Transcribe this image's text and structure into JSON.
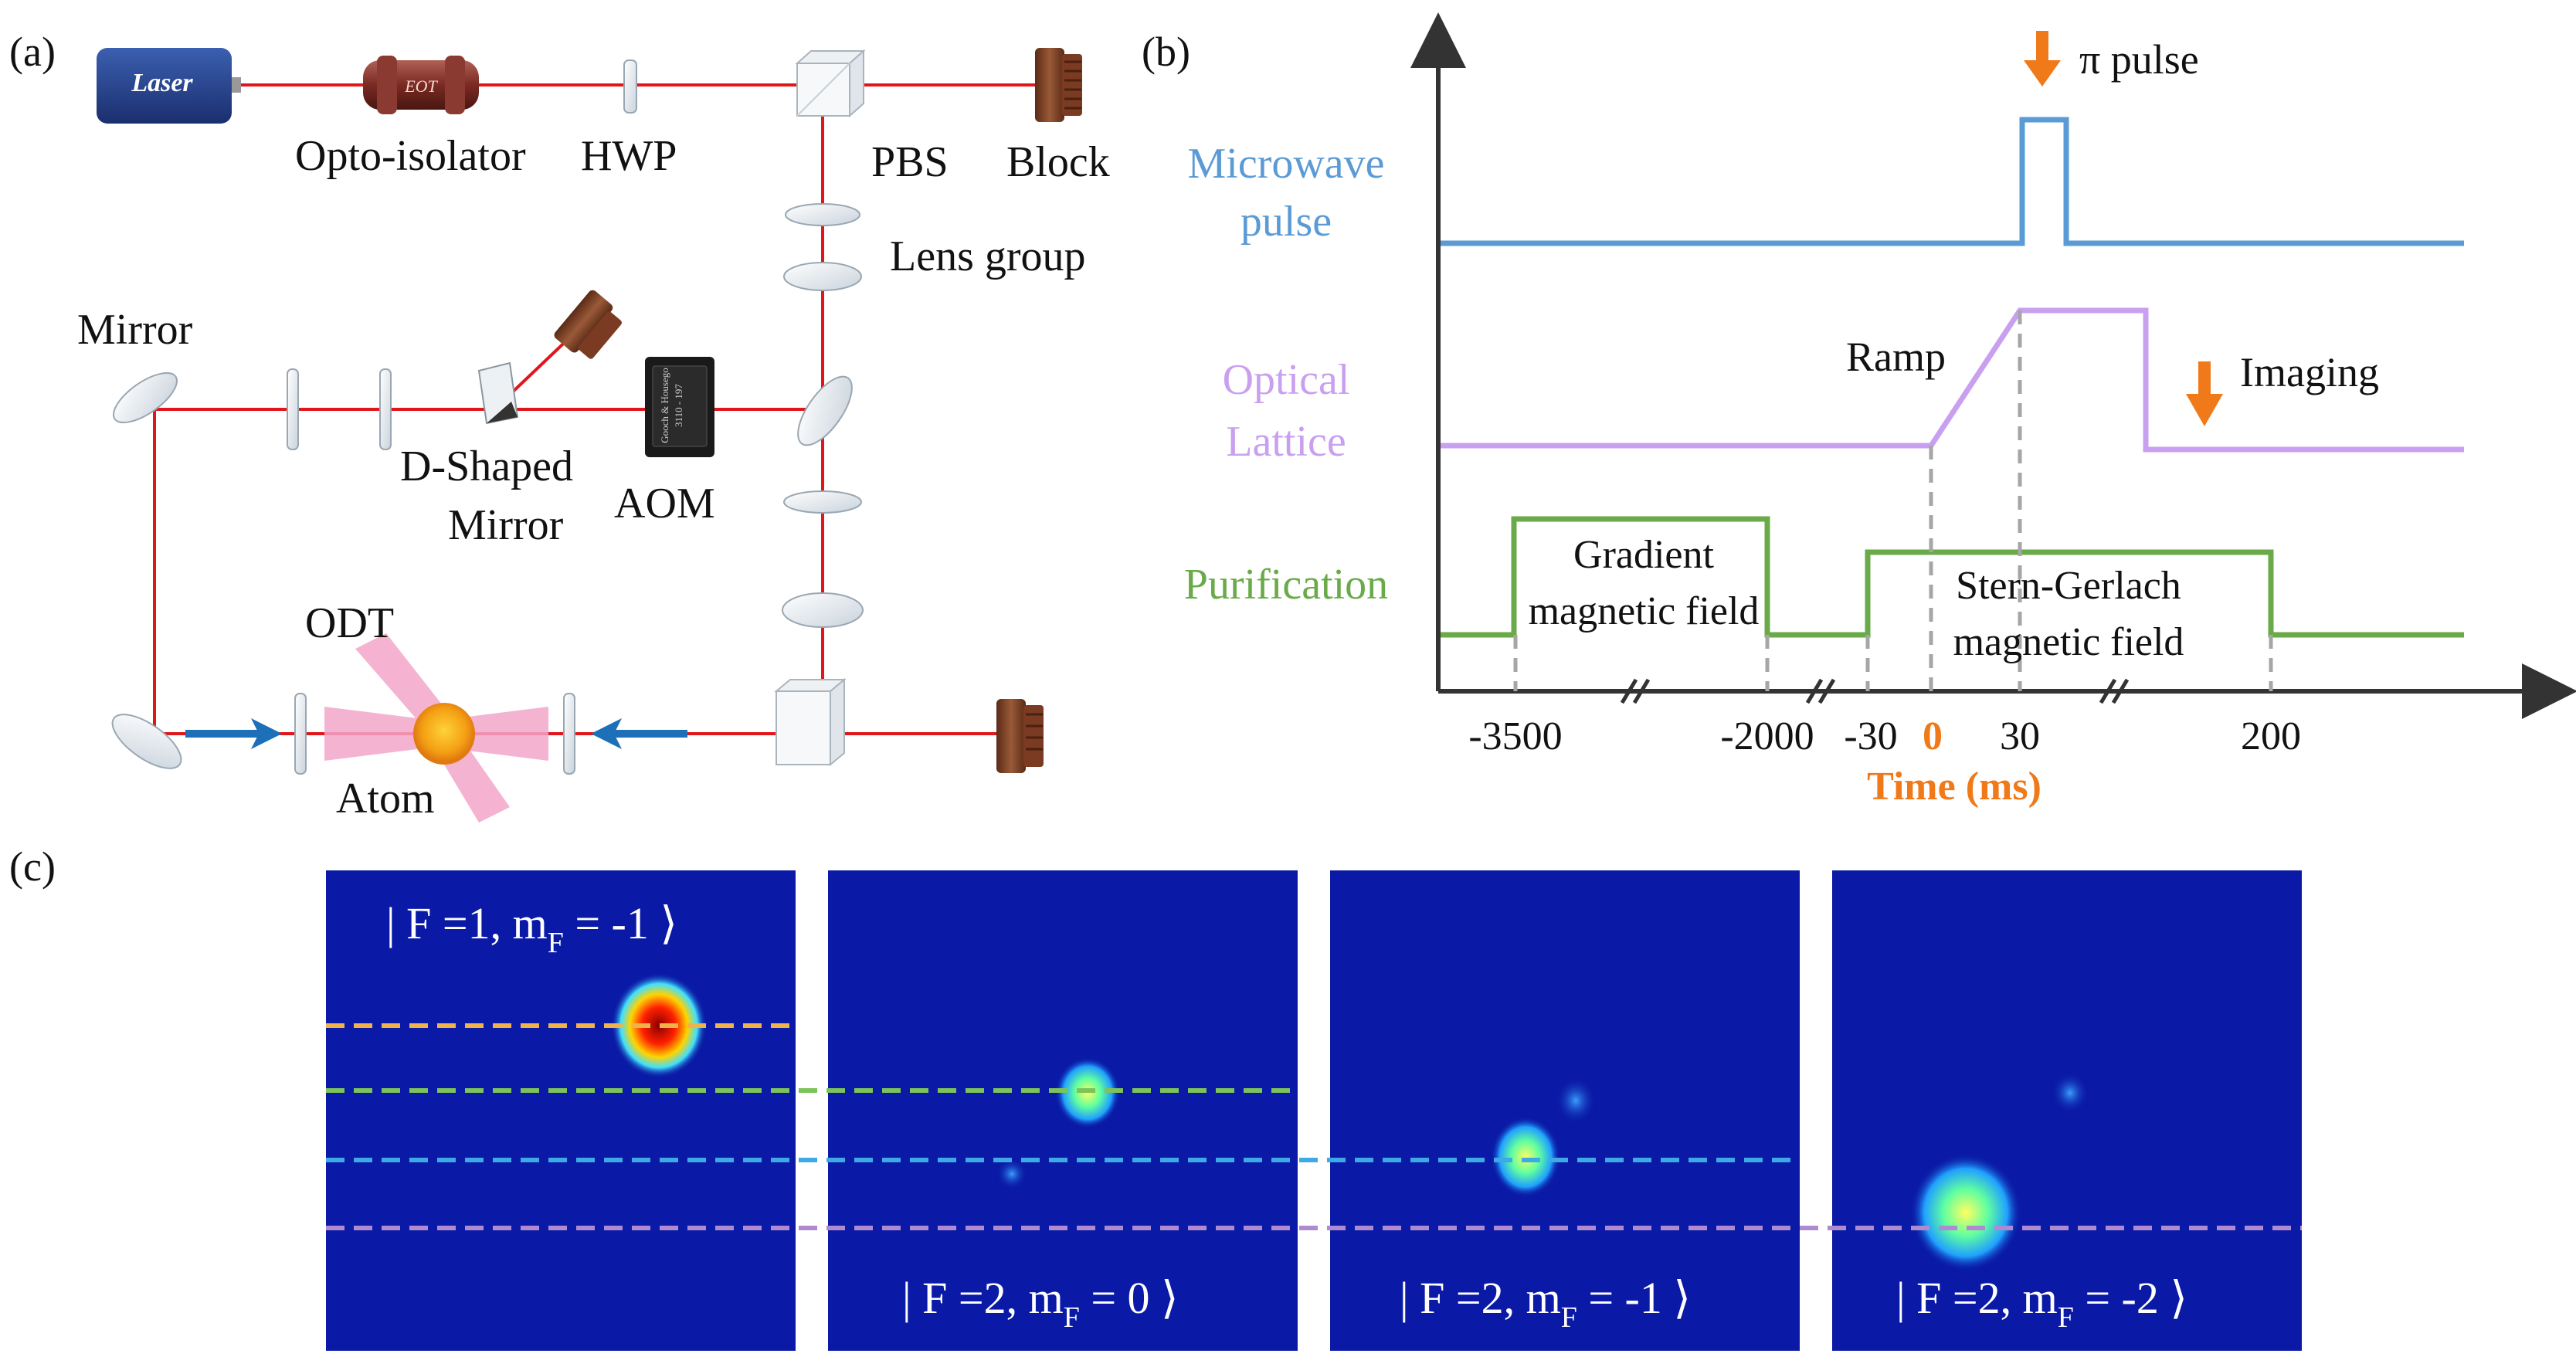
{
  "panel_a": {
    "tag": "(a)",
    "laser_label": "Laser",
    "eot_label": "EOT",
    "aom_chip_text": [
      "Gooch & Housego",
      "3110 - 197"
    ],
    "labels": {
      "opto_isolator": "Opto-isolator",
      "hwp": "HWP",
      "pbs": "PBS",
      "block": "Block",
      "lens_group": "Lens group",
      "mirror": "Mirror",
      "d_shaped_1": "D-Shaped",
      "d_shaped_2": "Mirror",
      "aom": "AOM",
      "odt": "ODT",
      "atom": "Atom"
    },
    "colors": {
      "beam": "#e0161b",
      "arrow": "#1d6fb8",
      "odt_beam": "#f3a6c9",
      "atom": "#f4a014",
      "block": "#7b3b22"
    }
  },
  "panel_b": {
    "tag": "(b)",
    "rows": [
      {
        "name1": "Microwave",
        "name2": "pulse",
        "color": "#5b9bd5"
      },
      {
        "name1": "Optical",
        "name2": "Lattice",
        "color": "#c9a0f0"
      },
      {
        "name1": "Purification",
        "name2": "",
        "color": "#6aaa48"
      }
    ],
    "pi_pulse": "π pulse",
    "ramp": "Ramp",
    "imaging": "Imaging",
    "gradient_1": "Gradient",
    "gradient_2": "magnetic field",
    "sg_1": "Stern-Gerlach",
    "sg_2": "magnetic field",
    "ticks": [
      "-3500",
      "-2000",
      "-30",
      "0",
      "30",
      "200"
    ],
    "xlabel": "Time (ms)",
    "accent": "#f07a1a"
  },
  "panel_c": {
    "tag": "(c)",
    "images": [
      {
        "state": "| F =1, m",
        "sub": "F",
        "tail": " = -1 ⟩",
        "label_pos": "top"
      },
      {
        "state": "| F =2, m",
        "sub": "F",
        "tail": " = 0 ⟩",
        "label_pos": "bottom"
      },
      {
        "state": "| F =2, m",
        "sub": "F",
        "tail": " = -1 ⟩",
        "label_pos": "bottom"
      },
      {
        "state": "| F =2, m",
        "sub": "F",
        "tail": " = -2 ⟩",
        "label_pos": "bottom"
      }
    ],
    "line_colors": [
      "#f2b24a",
      "#7cc45a",
      "#3fa9e6",
      "#b08ad0"
    ]
  }
}
